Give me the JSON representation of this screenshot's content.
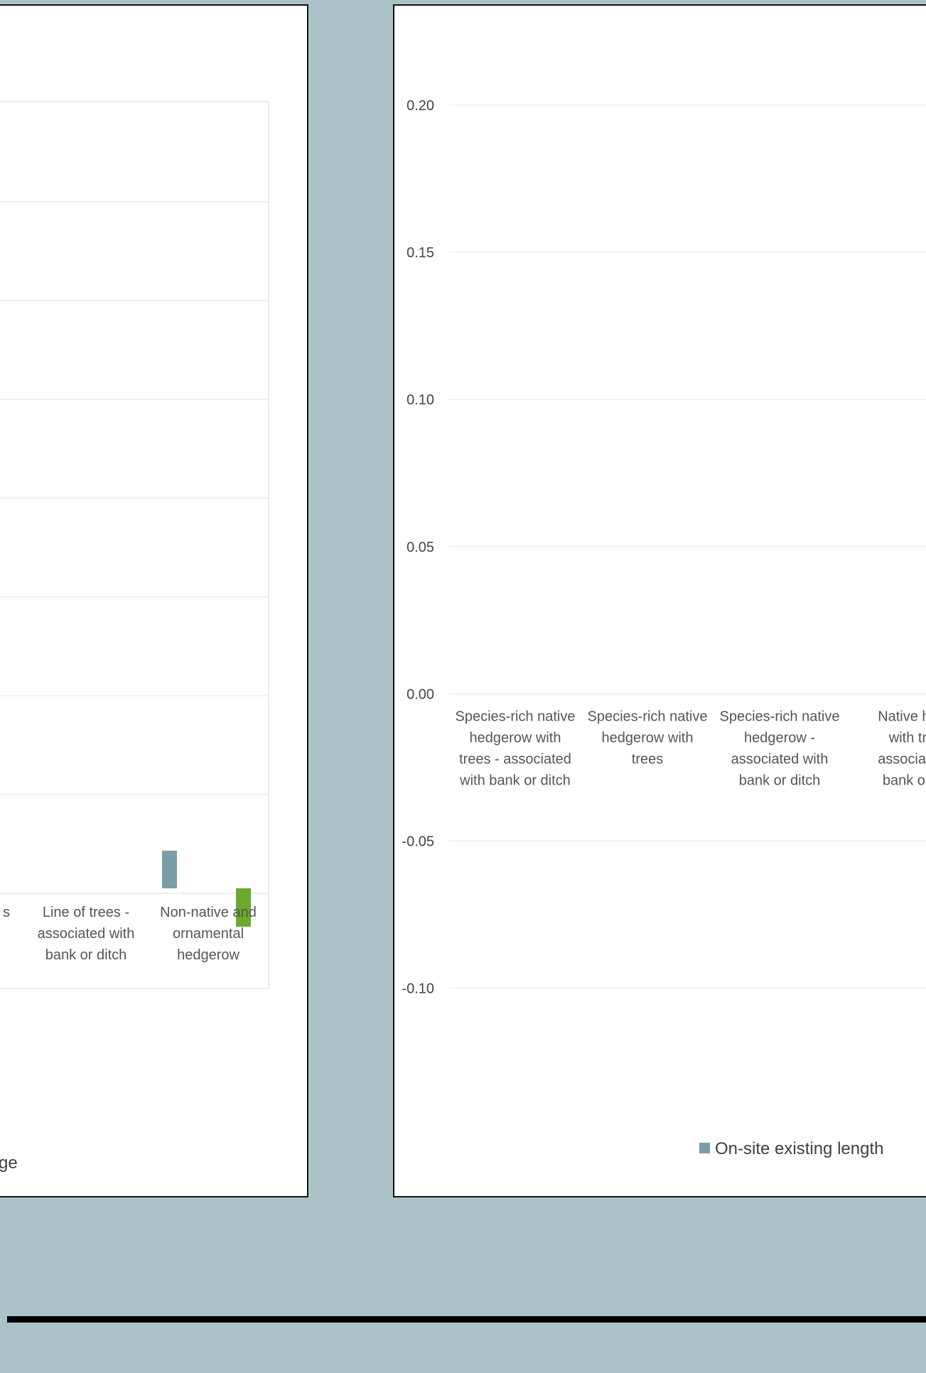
{
  "left_chart": {
    "categories": [
      "Line of trees -\nassociated with\nbank or ditch",
      "Non-native and\nornamental\nhedgerow"
    ],
    "partial_category_fragment": "s",
    "legend_fragment": "ge",
    "colors": {
      "series_a": "#7a9ea6",
      "series_b": "#6aab2e"
    }
  },
  "chart_data": {
    "type": "bar",
    "title": "",
    "xlabel": "",
    "ylabel": "",
    "ylim": [
      -0.15,
      0.22
    ],
    "yticks": [
      "0.20",
      "0.15",
      "0.10",
      "0.05",
      "0.00",
      "-0.05",
      "-0.10"
    ],
    "ytick_values": [
      0.2,
      0.15,
      0.1,
      0.05,
      0.0,
      -0.05,
      -0.1
    ],
    "categories": [
      "Species-rich native\nhedgerow with\ntrees - associated\nwith bank or ditch",
      "Species-rich native\nhedgerow with\ntrees",
      "Species-rich native\nhedgerow -\nassociated with\nbank or ditch",
      "Native hed\nwith tre\nassociated\nbank or c"
    ],
    "series": [
      {
        "name": "On-site existing length",
        "values": [
          0,
          0,
          0,
          0
        ],
        "color": "#7a9ea6"
      }
    ],
    "grid": true,
    "legend": "bottom"
  }
}
